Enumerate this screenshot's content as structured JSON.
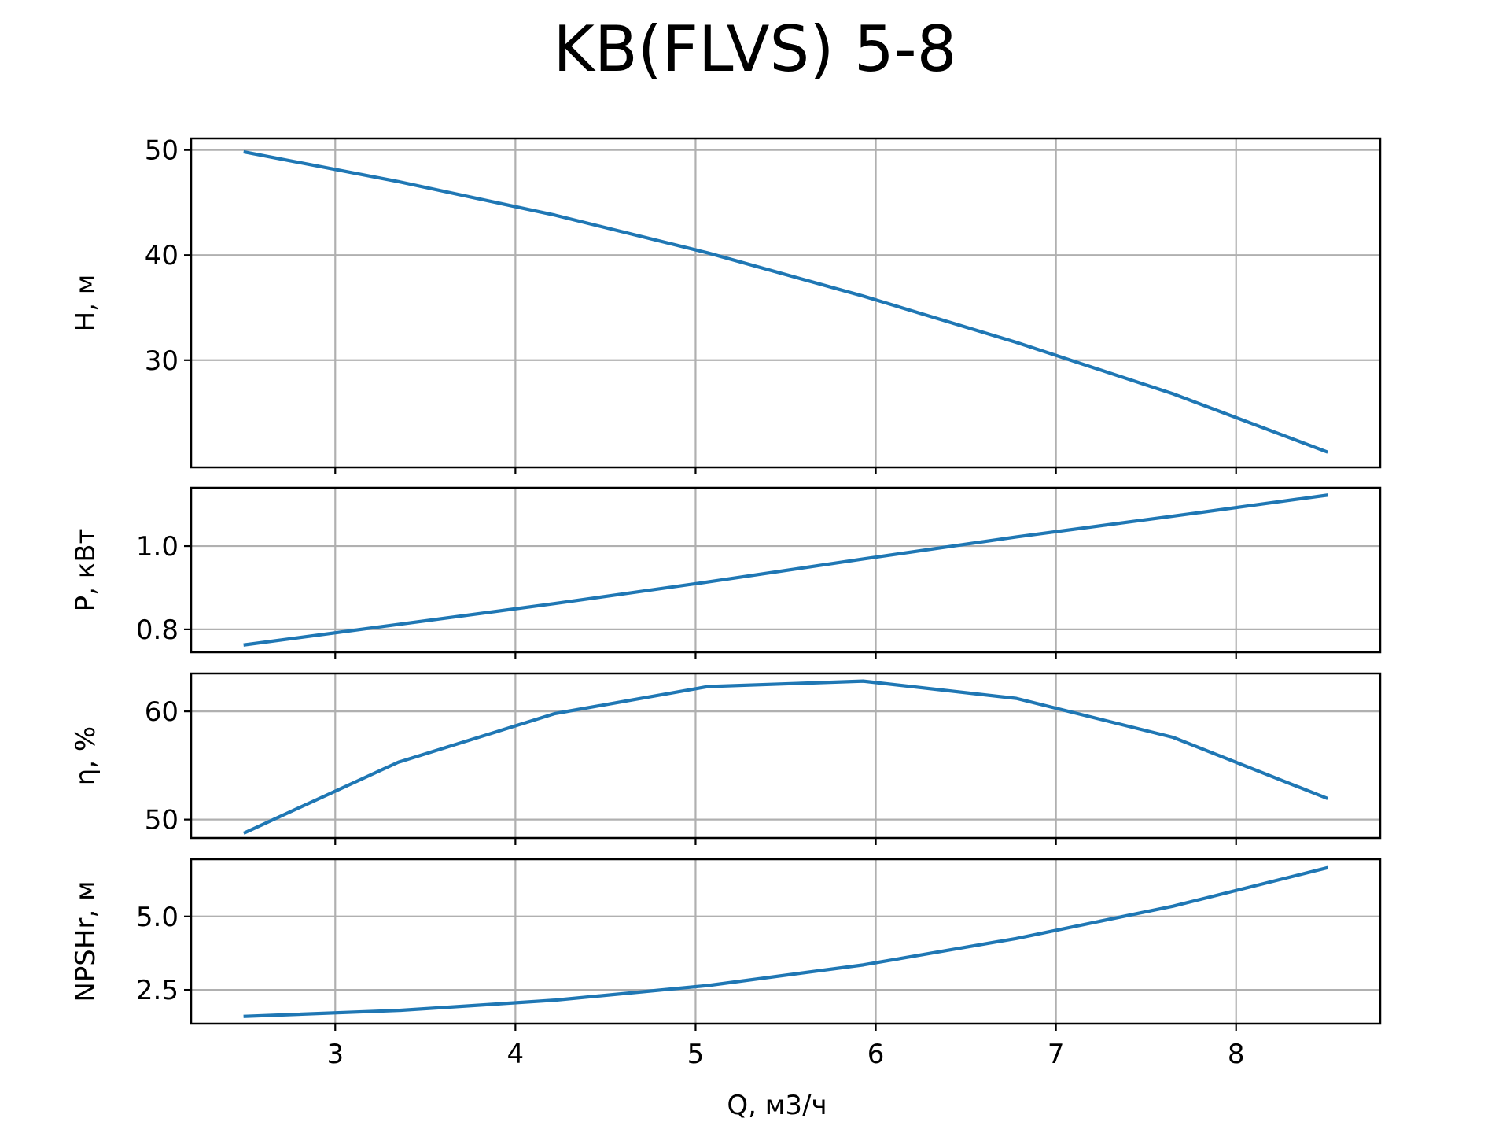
{
  "chart_data": {
    "type": "line",
    "title": "KB(FLVS) 5-8",
    "xlabel": "Q, м3/ч",
    "xlim": [
      2.2,
      8.8
    ],
    "xticks": [
      3,
      4,
      5,
      6,
      7,
      8
    ],
    "xtick_labels": [
      "3",
      "4",
      "5",
      "6",
      "7",
      "8"
    ],
    "x": [
      2.5,
      3.35,
      4.22,
      5.07,
      5.93,
      6.78,
      7.65,
      8.5
    ],
    "grid": true,
    "line_color": "#1f77b4",
    "subplots": [
      {
        "name": "head",
        "ylabel": "H, м",
        "ylim": [
          19.8,
          51.1
        ],
        "yticks": [
          30,
          40,
          50
        ],
        "ytick_labels": [
          "30",
          "40",
          "50"
        ],
        "values": [
          49.8,
          47.0,
          43.8,
          40.2,
          36.1,
          31.7,
          26.8,
          21.3
        ]
      },
      {
        "name": "power",
        "ylabel": "P, кВт",
        "ylim": [
          0.745,
          1.14
        ],
        "yticks": [
          0.8,
          1.0
        ],
        "ytick_labels": [
          "0.8",
          "1.0"
        ],
        "values": [
          0.763,
          0.812,
          0.862,
          0.914,
          0.969,
          1.022,
          1.072,
          1.122
        ]
      },
      {
        "name": "efficiency",
        "ylabel": "η, %",
        "ylim": [
          48.3,
          63.5
        ],
        "yticks": [
          50,
          60
        ],
        "ytick_labels": [
          "50",
          "60"
        ],
        "values": [
          48.8,
          55.3,
          59.8,
          62.3,
          62.8,
          61.2,
          57.6,
          52.0
        ]
      },
      {
        "name": "npshr",
        "ylabel": "NPSHr, м",
        "ylim": [
          1.35,
          6.95
        ],
        "yticks": [
          2.5,
          5.0
        ],
        "ytick_labels": [
          "2.5",
          "5.0"
        ],
        "values": [
          1.6,
          1.8,
          2.15,
          2.65,
          3.35,
          4.25,
          5.35,
          6.65
        ]
      }
    ]
  }
}
